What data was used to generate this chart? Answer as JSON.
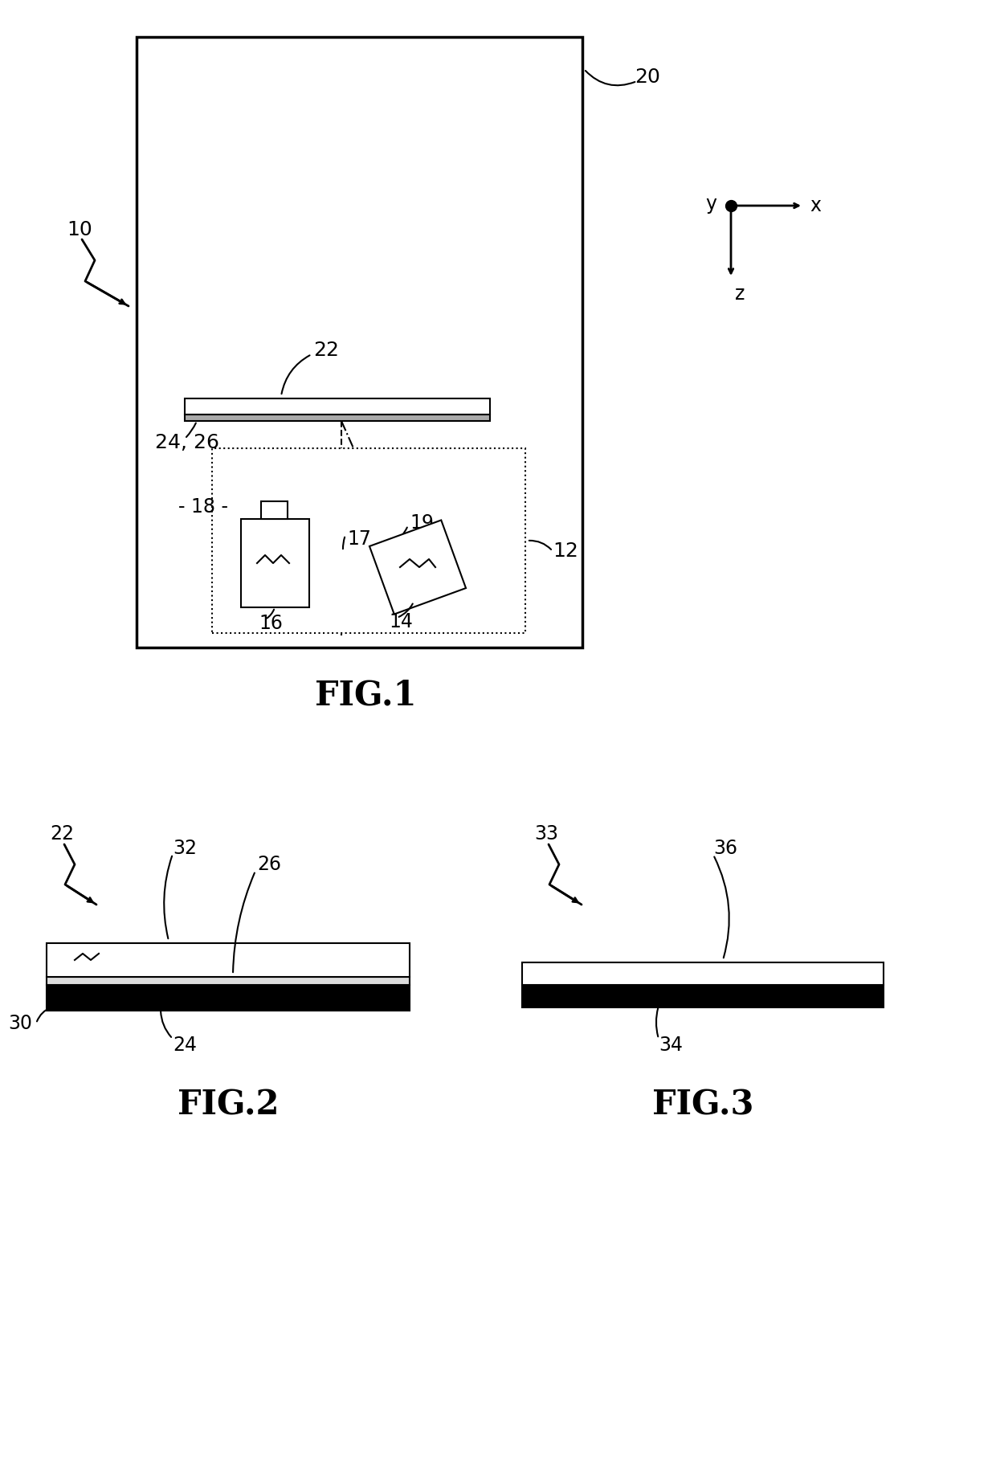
{
  "bg_color": "#ffffff",
  "line_color": "#000000",
  "fig_width": 12.4,
  "fig_height": 18.46,
  "fig1_caption": "FIG.1",
  "fig2_caption": "FIG.2",
  "fig3_caption": "FIG.3"
}
